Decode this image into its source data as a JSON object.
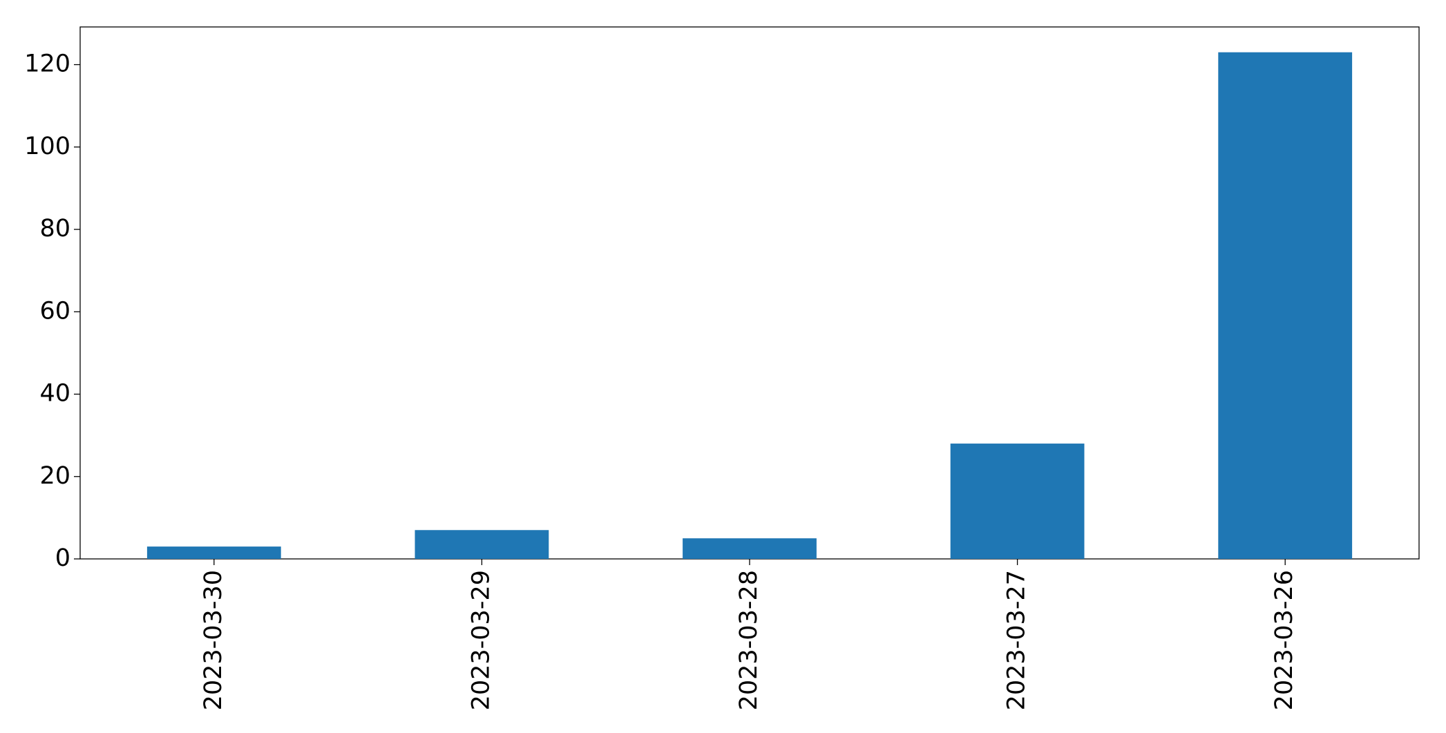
{
  "chart_data": {
    "type": "bar",
    "categories": [
      "2023-03-30",
      "2023-03-29",
      "2023-03-28",
      "2023-03-27",
      "2023-03-26"
    ],
    "values": [
      3,
      7,
      5,
      28,
      123
    ],
    "color": "#1f77b4",
    "ylim": [
      0,
      129.15
    ],
    "yticks": [
      0,
      20,
      40,
      60,
      80,
      100,
      120
    ],
    "grid": false
  }
}
